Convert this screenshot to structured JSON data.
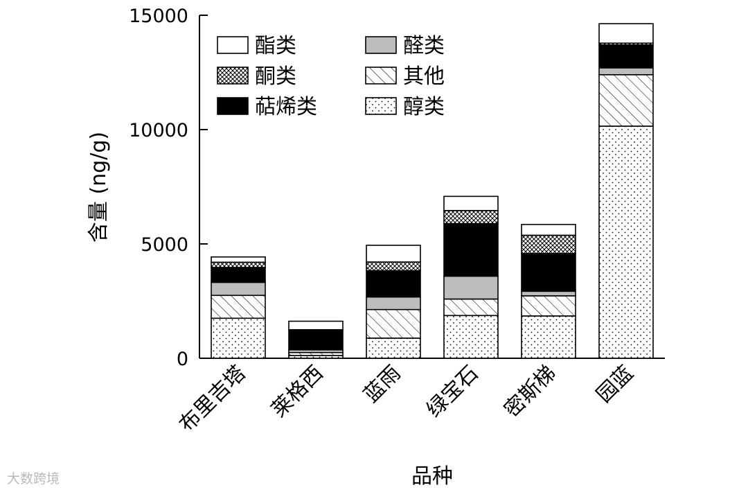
{
  "chart_data": {
    "type": "bar",
    "stacked": true,
    "title": "",
    "xlabel": "品种",
    "ylabel": "含量 (ng/g)",
    "ylim": [
      0,
      15000
    ],
    "yticks": [
      0,
      5000,
      10000,
      15000
    ],
    "categories": [
      "布里吉塔",
      "莱格西",
      "蓝雨",
      "绿宝石",
      "密斯梯",
      "园蓝"
    ],
    "series": [
      {
        "name": "醇类",
        "pattern": "dots",
        "values": [
          1750,
          120,
          880,
          1870,
          1850,
          10150
        ]
      },
      {
        "name": "其他",
        "pattern": "hatch",
        "values": [
          1000,
          130,
          1250,
          720,
          880,
          2250
        ]
      },
      {
        "name": "醛类",
        "pattern": "gray",
        "values": [
          570,
          120,
          550,
          1000,
          200,
          300
        ]
      },
      {
        "name": "萜烯类",
        "pattern": "black",
        "values": [
          650,
          850,
          1150,
          2300,
          1650,
          1000
        ]
      },
      {
        "name": "酮类",
        "pattern": "crosshatch",
        "values": [
          230,
          30,
          380,
          570,
          800,
          80
        ]
      },
      {
        "name": "酯类",
        "pattern": "white",
        "values": [
          230,
          370,
          730,
          620,
          470,
          850
        ]
      }
    ],
    "legend": {
      "placement": "top-left",
      "order": [
        "酯类",
        "醛类",
        "酮类",
        "其他",
        "萜烯类",
        "醇类"
      ]
    },
    "grid": false,
    "colors": {
      "black": "#000000",
      "gray": "#bdbdbd",
      "white": "#ffffff"
    }
  },
  "watermark": {
    "text": "大数跨境"
  }
}
